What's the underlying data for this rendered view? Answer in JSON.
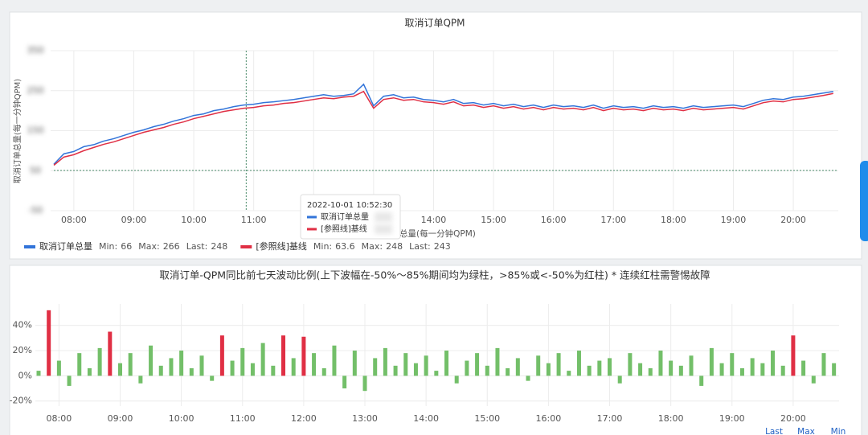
{
  "chart_data": [
    {
      "type": "line",
      "title": "取消订单QPM",
      "y_label": "取消订单总量(每一分钟QPM)",
      "x_label": "取消订单总量(每一分钟QPM)",
      "x": [
        "07:40",
        "07:50",
        "08:00",
        "08:10",
        "08:20",
        "08:30",
        "08:40",
        "08:50",
        "09:00",
        "09:10",
        "09:20",
        "09:30",
        "09:40",
        "09:50",
        "10:00",
        "10:10",
        "10:20",
        "10:30",
        "10:40",
        "10:50",
        "11:00",
        "11:10",
        "11:20",
        "11:30",
        "11:40",
        "11:50",
        "12:00",
        "12:10",
        "12:20",
        "12:30",
        "12:40",
        "12:50",
        "13:00",
        "13:10",
        "13:20",
        "13:30",
        "13:40",
        "13:50",
        "14:00",
        "14:10",
        "14:20",
        "14:30",
        "14:40",
        "14:50",
        "15:00",
        "15:10",
        "15:20",
        "15:30",
        "15:40",
        "15:50",
        "16:00",
        "16:10",
        "16:20",
        "16:30",
        "16:40",
        "16:50",
        "17:00",
        "17:10",
        "17:20",
        "17:30",
        "17:40",
        "17:50",
        "18:00",
        "18:10",
        "18:20",
        "18:30",
        "18:40",
        "18:50",
        "19:00",
        "19:10",
        "19:20",
        "19:30",
        "19:40",
        "19:50",
        "20:00",
        "20:10",
        "20:20",
        "20:30",
        "20:40"
      ],
      "series": [
        {
          "name": "取消订单总量",
          "color": "#3274d9",
          "values": [
            66,
            92,
            98,
            110,
            115,
            124,
            130,
            138,
            146,
            152,
            160,
            166,
            174,
            180,
            188,
            192,
            200,
            204,
            210,
            214,
            216,
            220,
            222,
            225,
            228,
            232,
            236,
            240,
            236,
            238,
            242,
            266,
            212,
            236,
            240,
            232,
            234,
            228,
            226,
            222,
            228,
            218,
            220,
            214,
            218,
            212,
            216,
            210,
            214,
            208,
            214,
            210,
            212,
            208,
            214,
            206,
            212,
            208,
            210,
            206,
            212,
            208,
            210,
            206,
            212,
            208,
            210,
            212,
            214,
            210,
            218,
            226,
            230,
            228,
            234,
            236,
            240,
            244,
            248
          ],
          "legend_stats": [
            {
              "label": "Min:",
              "value": 66
            },
            {
              "label": "Max:",
              "value": 266
            },
            {
              "label": "Last:",
              "value": 248
            }
          ]
        },
        {
          "name": "[参照线]基线",
          "color": "#e02f44",
          "values": [
            63.6,
            84,
            90,
            100,
            108,
            116,
            122,
            130,
            138,
            146,
            152,
            158,
            166,
            172,
            180,
            186,
            192,
            198,
            202,
            206,
            208,
            212,
            214,
            218,
            220,
            224,
            228,
            232,
            230,
            234,
            236,
            248,
            206,
            228,
            232,
            226,
            228,
            222,
            220,
            216,
            222,
            212,
            214,
            208,
            212,
            206,
            210,
            204,
            208,
            202,
            208,
            204,
            206,
            202,
            208,
            200,
            206,
            202,
            204,
            200,
            206,
            202,
            204,
            200,
            206,
            202,
            204,
            206,
            208,
            204,
            212,
            220,
            224,
            222,
            228,
            230,
            234,
            238,
            243
          ],
          "legend_stats": [
            {
              "label": "Min:",
              "value": 63.6
            },
            {
              "label": "Max:",
              "value": 248
            },
            {
              "label": "Last:",
              "value": 243
            }
          ]
        }
      ],
      "xlim": [
        "07:40",
        "20:45"
      ],
      "xticks": [
        "08:00",
        "09:00",
        "10:00",
        "11:00",
        "12:00",
        "13:00",
        "14:00",
        "15:00",
        "16:00",
        "17:00",
        "18:00",
        "19:00",
        "20:00"
      ],
      "ylim": [
        -50,
        350
      ],
      "yticks": [
        -50,
        50,
        150,
        250,
        350
      ],
      "grid": true,
      "tooltip": {
        "time": "2022-10-01 10:52:30",
        "items": [
          "取消订单总量",
          "[参照线]基线"
        ]
      }
    },
    {
      "type": "bar",
      "title": "取消订单-QPM同比前七天波动比例(上下波幅在-50%～85%期间均为绿柱，>85%或<-50%为红柱) * 连续红柱需警惕故障",
      "x": [
        "07:40",
        "07:50",
        "08:00",
        "08:10",
        "08:20",
        "08:30",
        "08:40",
        "08:50",
        "09:00",
        "09:10",
        "09:20",
        "09:30",
        "09:40",
        "09:50",
        "10:00",
        "10:10",
        "10:20",
        "10:30",
        "10:40",
        "10:50",
        "11:00",
        "11:10",
        "11:20",
        "11:30",
        "11:40",
        "11:50",
        "12:00",
        "12:10",
        "12:20",
        "12:30",
        "12:40",
        "12:50",
        "13:00",
        "13:10",
        "13:20",
        "13:30",
        "13:40",
        "13:50",
        "14:00",
        "14:10",
        "14:20",
        "14:30",
        "14:40",
        "14:50",
        "15:00",
        "15:10",
        "15:20",
        "15:30",
        "15:40",
        "15:50",
        "16:00",
        "16:10",
        "16:20",
        "16:30",
        "16:40",
        "16:50",
        "17:00",
        "17:10",
        "17:20",
        "17:30",
        "17:40",
        "17:50",
        "18:00",
        "18:10",
        "18:20",
        "18:30",
        "18:40",
        "18:50",
        "19:00",
        "19:10",
        "19:20",
        "19:30",
        "19:40",
        "19:50",
        "20:00",
        "20:10",
        "20:20",
        "20:30",
        "20:40"
      ],
      "values": [
        4,
        52,
        12,
        -8,
        18,
        6,
        22,
        35,
        10,
        18,
        -6,
        24,
        8,
        14,
        20,
        6,
        16,
        -4,
        32,
        12,
        22,
        10,
        26,
        8,
        32,
        14,
        31,
        18,
        6,
        24,
        -10,
        20,
        -12,
        14,
        22,
        8,
        18,
        10,
        16,
        4,
        20,
        -6,
        12,
        18,
        8,
        22,
        6,
        14,
        -4,
        16,
        10,
        18,
        4,
        20,
        8,
        12,
        14,
        -6,
        18,
        10,
        6,
        20,
        12,
        8,
        16,
        -8,
        22,
        10,
        18,
        6,
        14,
        10,
        20,
        8,
        32,
        12,
        -6,
        18,
        10
      ],
      "colors": [
        "#73bf69",
        "#e02f44",
        "#73bf69",
        "#73bf69",
        "#73bf69",
        "#73bf69",
        "#73bf69",
        "#e02f44",
        "#73bf69",
        "#73bf69",
        "#73bf69",
        "#73bf69",
        "#73bf69",
        "#73bf69",
        "#73bf69",
        "#73bf69",
        "#73bf69",
        "#73bf69",
        "#e02f44",
        "#73bf69",
        "#73bf69",
        "#73bf69",
        "#73bf69",
        "#73bf69",
        "#e02f44",
        "#73bf69",
        "#e02f44",
        "#73bf69",
        "#73bf69",
        "#73bf69",
        "#73bf69",
        "#73bf69",
        "#73bf69",
        "#73bf69",
        "#73bf69",
        "#73bf69",
        "#73bf69",
        "#73bf69",
        "#73bf69",
        "#73bf69",
        "#73bf69",
        "#73bf69",
        "#73bf69",
        "#73bf69",
        "#73bf69",
        "#73bf69",
        "#73bf69",
        "#73bf69",
        "#73bf69",
        "#73bf69",
        "#73bf69",
        "#73bf69",
        "#73bf69",
        "#73bf69",
        "#73bf69",
        "#73bf69",
        "#73bf69",
        "#73bf69",
        "#73bf69",
        "#73bf69",
        "#73bf69",
        "#73bf69",
        "#73bf69",
        "#73bf69",
        "#73bf69",
        "#73bf69",
        "#73bf69",
        "#73bf69",
        "#73bf69",
        "#73bf69",
        "#73bf69",
        "#73bf69",
        "#73bf69",
        "#73bf69",
        "#e02f44",
        "#73bf69",
        "#73bf69",
        "#73bf69",
        "#73bf69"
      ],
      "xlim": [
        "07:40",
        "20:45"
      ],
      "xticks": [
        "08:00",
        "09:00",
        "10:00",
        "11:00",
        "12:00",
        "13:00",
        "14:00",
        "15:00",
        "16:00",
        "17:00",
        "18:00",
        "19:00",
        "20:00"
      ],
      "ylim": [
        -24,
        57
      ],
      "yticks": [
        {
          "value": 40,
          "label": "40%"
        },
        {
          "value": 20,
          "label": "20%"
        },
        {
          "value": 0,
          "label": "0%"
        },
        {
          "value": -20,
          "label": "-20%"
        }
      ],
      "grid": true,
      "legend_headers": [
        "Last",
        "Max",
        "Min"
      ]
    }
  ]
}
